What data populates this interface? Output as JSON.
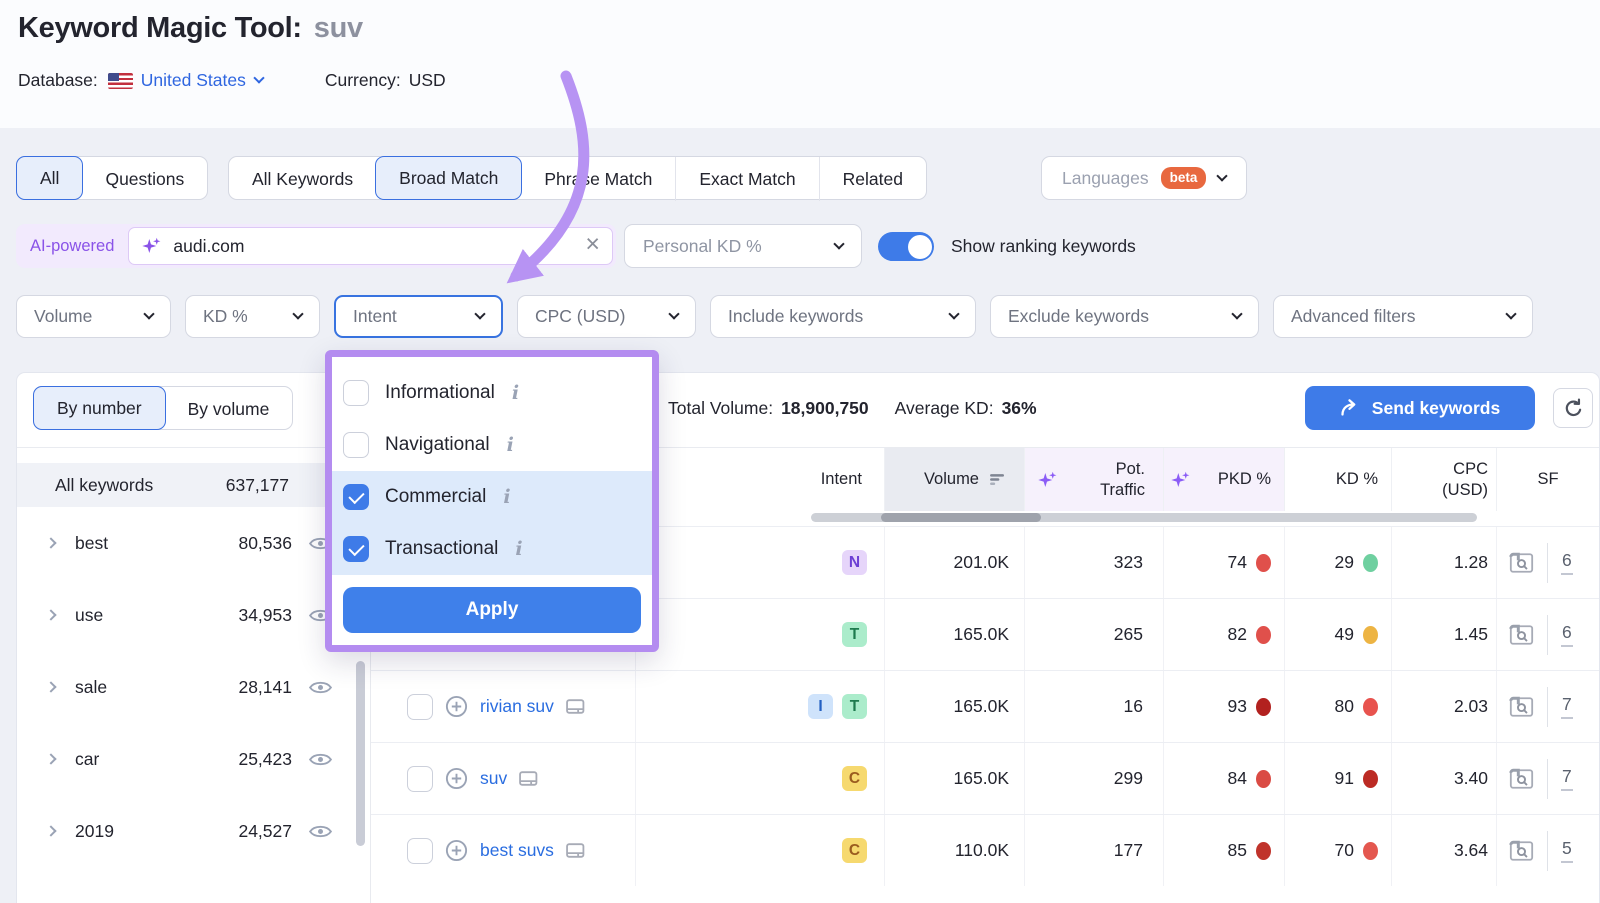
{
  "page": {
    "title_prefix": "Keyword Magic Tool:",
    "title_query": "suv"
  },
  "meta_bar": {
    "database_label": "Database:",
    "database_value": "United States",
    "currency_label": "Currency:",
    "currency_value": "USD"
  },
  "match_tabs": {
    "group1": [
      {
        "label": "All",
        "selected": true
      },
      {
        "label": "Questions",
        "selected": false
      }
    ],
    "group2": [
      {
        "label": "All Keywords",
        "selected": false
      },
      {
        "label": "Broad Match",
        "selected": true
      },
      {
        "label": "Phrase Match",
        "selected": false
      },
      {
        "label": "Exact Match",
        "selected": false
      },
      {
        "label": "Related",
        "selected": false
      }
    ],
    "languages_label": "Languages",
    "languages_badge": "beta"
  },
  "search": {
    "ai_label": "AI-powered",
    "value": "audi.com",
    "personal_kd_label": "Personal KD %",
    "toggle_label": "Show ranking keywords",
    "toggle_on": true
  },
  "filter_buttons": [
    {
      "label": "Volume",
      "active": false
    },
    {
      "label": "KD %",
      "active": false
    },
    {
      "label": "Intent",
      "active": true
    },
    {
      "label": "CPC (USD)",
      "active": false
    },
    {
      "label": "Include keywords",
      "active": false
    },
    {
      "label": "Exclude keywords",
      "active": false
    },
    {
      "label": "Advanced filters",
      "active": false
    }
  ],
  "intent_popup": {
    "options": [
      {
        "label": "Informational",
        "checked": false
      },
      {
        "label": "Navigational",
        "checked": false
      },
      {
        "label": "Commercial",
        "checked": true
      },
      {
        "label": "Transactional",
        "checked": true
      }
    ],
    "apply_label": "Apply"
  },
  "toolbar": {
    "view_tabs": [
      {
        "label": "By number",
        "selected": true
      },
      {
        "label": "By volume",
        "selected": false
      }
    ],
    "total_volume_label": "Total Volume:",
    "total_volume_value": "18,900,750",
    "avg_kd_label": "Average KD:",
    "avg_kd_value": "36%",
    "send_label": "Send keywords"
  },
  "sidebar": {
    "header": {
      "label": "All keywords",
      "count": "637,177"
    },
    "groups": [
      {
        "term": "best",
        "count": "80,536"
      },
      {
        "term": "use",
        "count": "34,953"
      },
      {
        "term": "sale",
        "count": "28,141"
      },
      {
        "term": "car",
        "count": "25,423"
      },
      {
        "term": "2019",
        "count": "24,527"
      }
    ]
  },
  "table": {
    "columns": {
      "intent": "Intent",
      "volume": "Volume",
      "pot_line1": "Pot.",
      "pot_line2": "Traffic",
      "pkd": "PKD %",
      "kd": "KD %",
      "cpc_line1": "CPC",
      "cpc_line2": "(USD)",
      "sf": "SF"
    },
    "intent_badge_styles": {
      "I": {
        "bg": "#cfe3fb",
        "fg": "#2460c2"
      },
      "N": {
        "bg": "#e6d5fa",
        "fg": "#6d3fd4"
      },
      "C": {
        "bg": "#f6d96f",
        "fg": "#9a5b1f"
      },
      "T": {
        "bg": "#abeccb",
        "fg": "#1e7a4e"
      }
    },
    "rows": [
      {
        "keyword": "",
        "intents": [
          "N"
        ],
        "volume": "201.0K",
        "pot_traffic": "323",
        "pkd": "74",
        "pkd_dot": "#e0504b",
        "kd": "29",
        "kd_dot": "#6fd0a0",
        "cpc": "1.28",
        "sf": "6"
      },
      {
        "keyword": "",
        "intents": [
          "T"
        ],
        "volume": "165.0K",
        "pot_traffic": "265",
        "pkd": "82",
        "pkd_dot": "#e0504b",
        "kd": "49",
        "kd_dot": "#edb443",
        "cpc": "1.45",
        "sf": "6"
      },
      {
        "keyword": "rivian suv",
        "intents": [
          "I",
          "T"
        ],
        "volume": "165.0K",
        "pot_traffic": "16",
        "pkd": "93",
        "pkd_dot": "#b2211f",
        "kd": "80",
        "kd_dot": "#e8534e",
        "cpc": "2.03",
        "sf": "7"
      },
      {
        "keyword": "suv",
        "intents": [
          "C"
        ],
        "volume": "165.0K",
        "pot_traffic": "299",
        "pkd": "84",
        "pkd_dot": "#da4b44",
        "kd": "91",
        "kd_dot": "#bc2b24",
        "cpc": "3.40",
        "sf": "7"
      },
      {
        "keyword": "best suvs",
        "intents": [
          "C"
        ],
        "volume": "110.0K",
        "pot_traffic": "177",
        "pkd": "85",
        "pkd_dot": "#c0332b",
        "kd": "70",
        "kd_dot": "#e4574f",
        "cpc": "3.64",
        "sf": "5"
      }
    ]
  },
  "colors": {
    "accent_blue": "#3e7be8",
    "link_blue": "#2a6de0",
    "annotation_purple": "#b793f3",
    "beta_orange": "#e8683f"
  }
}
